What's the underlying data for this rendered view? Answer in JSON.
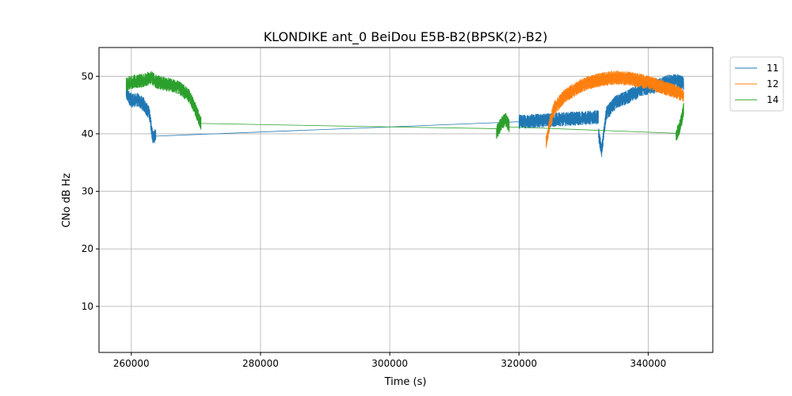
{
  "chart_data": {
    "type": "line",
    "title": "KLONDIKE ant_0 BeiDou E5B-B2(BPSK(2)-B2)",
    "xlabel": "Time (s)",
    "ylabel": "CNo dB Hz",
    "xlim": [
      255000,
      350000
    ],
    "ylim": [
      2,
      55
    ],
    "xticks": [
      260000,
      280000,
      300000,
      320000,
      340000
    ],
    "yticks": [
      10,
      20,
      30,
      40,
      50
    ],
    "grid": true,
    "legend_position": "outside-top-right",
    "series": [
      {
        "name": "11",
        "color": "#1f77b4",
        "segments": [
          [
            [
              259200,
              47.0
            ],
            [
              260000,
              45.8
            ],
            [
              261000,
              45.9
            ],
            [
              262000,
              45.0
            ],
            [
              262800,
              43.5
            ],
            [
              263300,
              39.5
            ],
            [
              263800,
              39.6
            ]
          ],
          [
            [
              263800,
              39.6
            ],
            [
              300000,
              41.2
            ],
            [
              320000,
              42.1
            ],
            [
              332300,
              42.9
            ]
          ],
          [
            [
              332300,
              40.0
            ],
            [
              332800,
              37.0
            ],
            [
              333500,
              43.5
            ],
            [
              335000,
              45.5
            ],
            [
              337000,
              46.5
            ],
            [
              339000,
              47.8
            ],
            [
              341000,
              48.2
            ],
            [
              343000,
              49.0
            ],
            [
              344500,
              49.2
            ],
            [
              345500,
              48.8
            ]
          ]
        ]
      },
      {
        "name": "12",
        "color": "#ff7f0e",
        "segments": [
          [
            [
              324200,
              38.5
            ],
            [
              324800,
              42.0
            ],
            [
              325500,
              44.5
            ],
            [
              327000,
              46.5
            ],
            [
              329000,
              48.0
            ],
            [
              331000,
              49.0
            ],
            [
              333000,
              49.5
            ],
            [
              335000,
              49.8
            ],
            [
              337000,
              49.6
            ],
            [
              339000,
              49.2
            ],
            [
              341000,
              48.6
            ],
            [
              343000,
              47.8
            ],
            [
              344500,
              47.2
            ],
            [
              345500,
              46.6
            ]
          ]
        ]
      },
      {
        "name": "14",
        "color": "#2ca02c",
        "segments": [
          [
            [
              259200,
              48.5
            ],
            [
              260000,
              49.0
            ],
            [
              261000,
              49.2
            ],
            [
              262000,
              49.3
            ],
            [
              263000,
              49.8
            ],
            [
              264000,
              49.0
            ],
            [
              265000,
              48.7
            ],
            [
              266000,
              48.5
            ],
            [
              267000,
              48.2
            ],
            [
              268000,
              47.5
            ],
            [
              269000,
              46.5
            ],
            [
              270000,
              44.0
            ],
            [
              270800,
              41.8
            ]
          ],
          [
            [
              270800,
              41.8
            ],
            [
              300000,
              41.2
            ],
            [
              316500,
              40.9
            ]
          ],
          [
            [
              316500,
              40.2
            ],
            [
              317300,
              41.8
            ],
            [
              318000,
              42.5
            ],
            [
              318500,
              41.2
            ]
          ],
          [
            [
              318500,
              41.2
            ],
            [
              344300,
              40.1
            ]
          ],
          [
            [
              344300,
              39.5
            ],
            [
              344800,
              41.0
            ],
            [
              345200,
              42.5
            ],
            [
              345500,
              44.5
            ]
          ]
        ]
      }
    ]
  }
}
